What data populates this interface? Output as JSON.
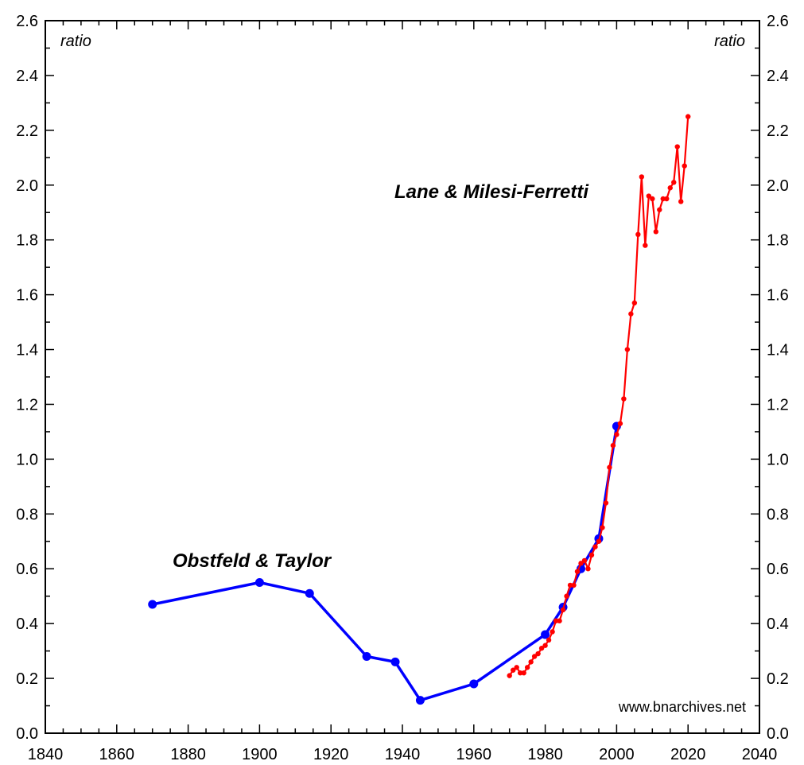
{
  "chart_data": {
    "type": "line",
    "title": "",
    "xlabel": "",
    "ylabel": "ratio",
    "ylabel_right": "ratio",
    "xlim": [
      1840,
      2040
    ],
    "ylim": [
      0,
      2.6
    ],
    "x_ticks": [
      1840,
      1860,
      1880,
      1900,
      1920,
      1940,
      1960,
      1980,
      2000,
      2020,
      2040
    ],
    "y_ticks": [
      0.0,
      0.2,
      0.4,
      0.6,
      0.8,
      1.0,
      1.2,
      1.4,
      1.6,
      1.8,
      2.0,
      2.2,
      2.4,
      2.6
    ],
    "y_tick_labels": [
      "0.0",
      "0.2",
      "0.4",
      "0.6",
      "0.8",
      "1.0",
      "1.2",
      "1.4",
      "1.6",
      "1.8",
      "2.0",
      "2.2",
      "2.4",
      "2.6"
    ],
    "grid": false,
    "watermark": "www.bnarchives.net",
    "series": [
      {
        "name": "Obstfeld & Taylor",
        "color": "#0000ff",
        "x": [
          1870,
          1900,
          1914,
          1930,
          1938,
          1945,
          1960,
          1980,
          1985,
          1990,
          1995,
          2000
        ],
        "y": [
          0.47,
          0.55,
          0.51,
          0.28,
          0.26,
          0.12,
          0.18,
          0.36,
          0.46,
          0.6,
          0.71,
          1.12
        ]
      },
      {
        "name": "Lane & Milesi-Ferretti",
        "color": "#ff0000",
        "x": [
          1970,
          1971,
          1972,
          1973,
          1974,
          1975,
          1976,
          1977,
          1978,
          1979,
          1980,
          1981,
          1982,
          1983,
          1984,
          1985,
          1986,
          1987,
          1988,
          1989,
          1990,
          1991,
          1992,
          1993,
          1994,
          1995,
          1996,
          1997,
          1998,
          1999,
          2000,
          2001,
          2002,
          2003,
          2004,
          2005,
          2006,
          2007,
          2008,
          2009,
          2010,
          2011,
          2012,
          2013,
          2014,
          2015,
          2016,
          2017,
          2018,
          2019,
          2020
        ],
        "y": [
          0.21,
          0.23,
          0.24,
          0.22,
          0.22,
          0.24,
          0.26,
          0.28,
          0.29,
          0.31,
          0.32,
          0.34,
          0.37,
          0.41,
          0.41,
          0.45,
          0.5,
          0.54,
          0.54,
          0.59,
          0.62,
          0.63,
          0.6,
          0.65,
          0.68,
          0.7,
          0.75,
          0.84,
          0.97,
          1.05,
          1.09,
          1.13,
          1.22,
          1.4,
          1.53,
          1.57,
          1.82,
          2.03,
          1.78,
          1.96,
          1.95,
          1.83,
          1.91,
          1.95,
          1.95,
          1.99,
          2.01,
          2.14,
          1.94,
          2.07,
          2.25
        ]
      }
    ]
  }
}
